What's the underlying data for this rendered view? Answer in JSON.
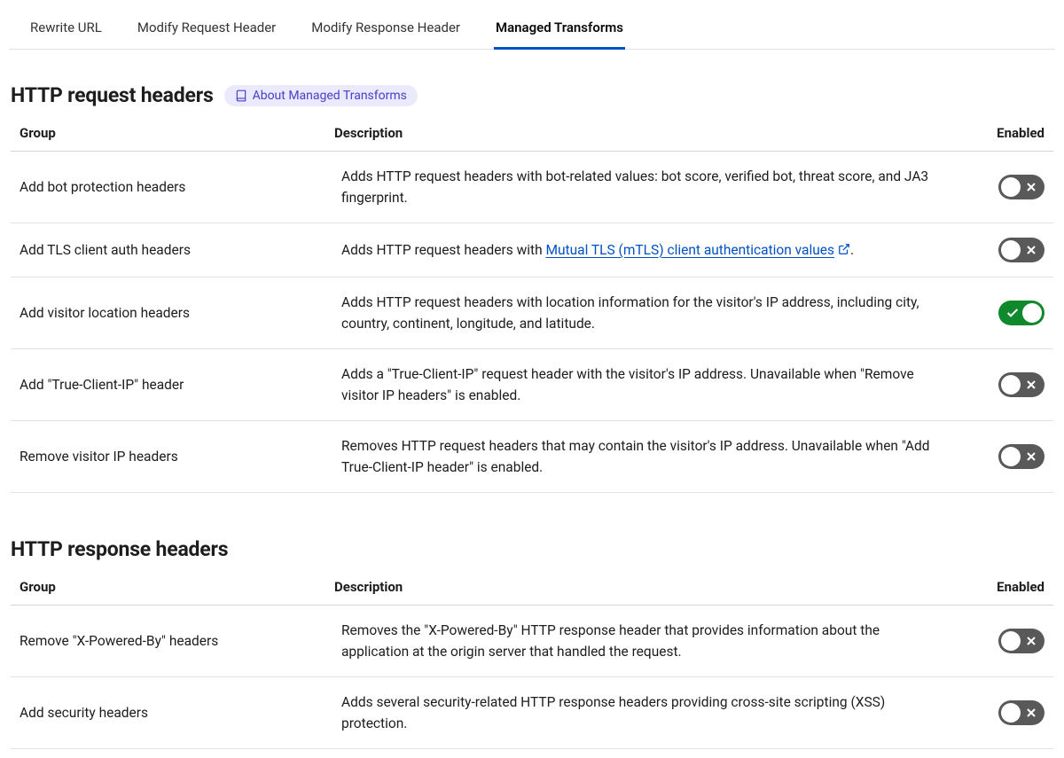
{
  "tabs": [
    {
      "label": "Rewrite URL",
      "active": false
    },
    {
      "label": "Modify Request Header",
      "active": false
    },
    {
      "label": "Modify Response Header",
      "active": false
    },
    {
      "label": "Managed Transforms",
      "active": true
    }
  ],
  "aboutBadge": "About Managed Transforms",
  "columns": {
    "group": "Group",
    "description": "Description",
    "enabled": "Enabled"
  },
  "sections": [
    {
      "title": "HTTP request headers",
      "showBadge": true,
      "rows": [
        {
          "name": "Add bot protection headers",
          "desc": "Adds HTTP request headers with bot-related values: bot score, verified bot, threat score, and JA3 fingerprint.",
          "enabled": false
        },
        {
          "name": "Add TLS client auth headers",
          "descParts": [
            {
              "type": "text",
              "value": "Adds HTTP request headers with "
            },
            {
              "type": "link",
              "value": "Mutual TLS (mTLS) client authentication values",
              "external": true
            },
            {
              "type": "text",
              "value": "."
            }
          ],
          "enabled": false
        },
        {
          "name": "Add visitor location headers",
          "desc": "Adds HTTP request headers with location information for the visitor's IP address, including city, country, continent, longitude, and latitude.",
          "enabled": true
        },
        {
          "name": "Add \"True-Client-IP\" header",
          "desc": "Adds a \"True-Client-IP\" request header with the visitor's IP address. Unavailable when \"Remove visitor IP headers\" is enabled.",
          "enabled": false
        },
        {
          "name": "Remove visitor IP headers",
          "desc": "Removes HTTP request headers that may contain the visitor's IP address. Unavailable when \"Add True-Client-IP header\" is enabled.",
          "enabled": false
        }
      ]
    },
    {
      "title": "HTTP response headers",
      "showBadge": false,
      "rows": [
        {
          "name": "Remove \"X-Powered-By\" headers",
          "desc": "Removes the \"X-Powered-By\" HTTP response header that provides information about the application at the origin server that handled the request.",
          "enabled": false
        },
        {
          "name": "Add security headers",
          "desc": "Adds several security-related HTTP response headers providing cross-site scripting (XSS) protection.",
          "enabled": false
        }
      ]
    }
  ],
  "colors": {
    "tabActiveBorder": "#0051c3",
    "link": "#0051c3",
    "badgeBg": "#ebeafd",
    "badgeText": "#4b3ec7",
    "toggleOff": "#595959",
    "toggleOn": "#10892c",
    "border": "#e2e2e2"
  }
}
